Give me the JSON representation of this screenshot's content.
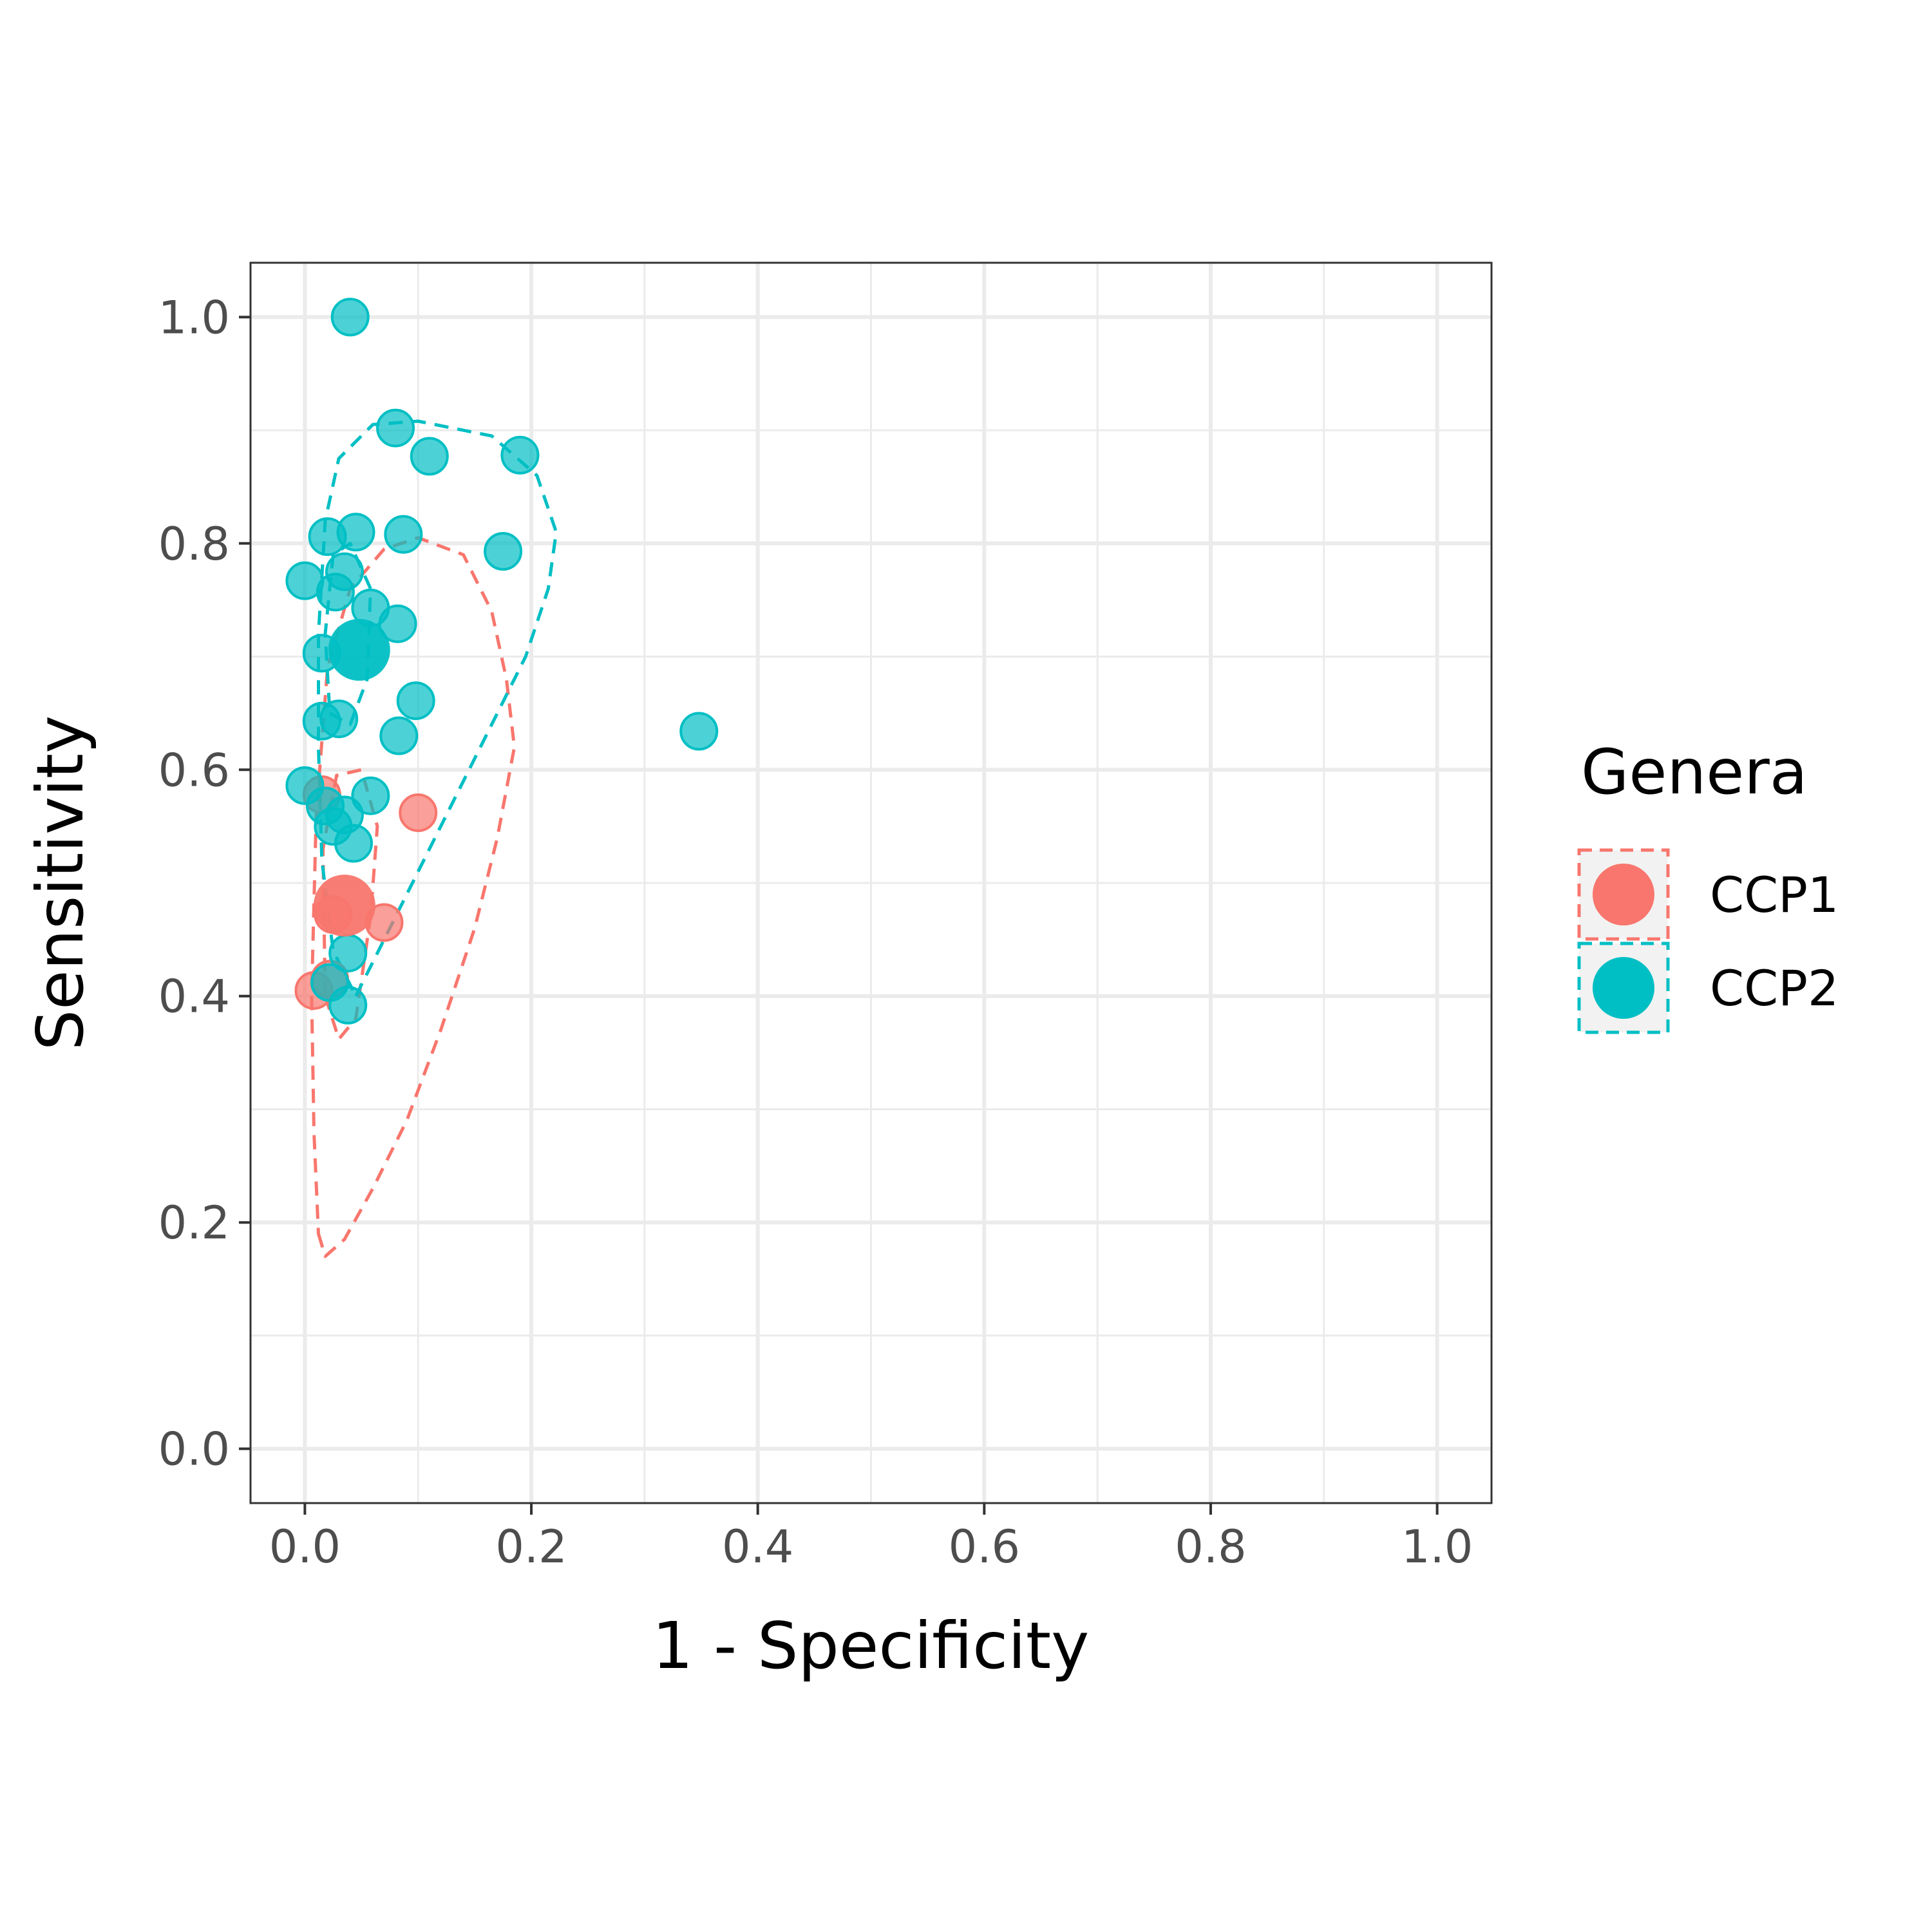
{
  "chart_data": {
    "type": "scatter",
    "xlabel": "1 - Specificity",
    "ylabel": "Sensitivity",
    "xlim": [
      -0.048,
      1.048
    ],
    "ylim": [
      -0.048,
      1.048
    ],
    "x_ticks": [
      "0.0",
      "0.2",
      "0.4",
      "0.6",
      "0.8",
      "1.0"
    ],
    "y_ticks": [
      "0.0",
      "0.2",
      "0.4",
      "0.6",
      "0.8",
      "1.0"
    ],
    "grid": true,
    "legend": {
      "title": "Genera",
      "position": "right"
    },
    "series": [
      {
        "name": "CCP1",
        "color": "#F8766D",
        "points": [
          {
            "x": 0.008,
            "y": 0.405
          },
          {
            "x": 0.022,
            "y": 0.415
          },
          {
            "x": 0.015,
            "y": 0.578
          },
          {
            "x": 0.025,
            "y": 0.472
          },
          {
            "x": 0.07,
            "y": 0.465
          },
          {
            "x": 0.1,
            "y": 0.562
          }
        ],
        "summary_point": {
          "x": 0.035,
          "y": 0.48
        },
        "confidence_region": [
          [
            0.012,
            0.19
          ],
          [
            0.018,
            0.17
          ],
          [
            0.035,
            0.185
          ],
          [
            0.06,
            0.23
          ],
          [
            0.09,
            0.29
          ],
          [
            0.12,
            0.37
          ],
          [
            0.15,
            0.46
          ],
          [
            0.17,
            0.54
          ],
          [
            0.185,
            0.62
          ],
          [
            0.178,
            0.68
          ],
          [
            0.165,
            0.74
          ],
          [
            0.14,
            0.79
          ],
          [
            0.1,
            0.805
          ],
          [
            0.07,
            0.795
          ],
          [
            0.04,
            0.76
          ],
          [
            0.02,
            0.69
          ],
          [
            0.01,
            0.56
          ],
          [
            0.006,
            0.4
          ],
          [
            0.008,
            0.28
          ],
          [
            0.012,
            0.19
          ]
        ],
        "prediction_region": [
          [
            0.018,
            0.4
          ],
          [
            0.03,
            0.362
          ],
          [
            0.045,
            0.38
          ],
          [
            0.058,
            0.47
          ],
          [
            0.064,
            0.55
          ],
          [
            0.05,
            0.6
          ],
          [
            0.028,
            0.595
          ],
          [
            0.016,
            0.53
          ],
          [
            0.018,
            0.4
          ]
        ]
      },
      {
        "name": "CCP2",
        "color": "#00BFC4",
        "points": [
          {
            "x": 0.04,
            "y": 1.0
          },
          {
            "x": 0.08,
            "y": 0.902
          },
          {
            "x": 0.11,
            "y": 0.877
          },
          {
            "x": 0.19,
            "y": 0.878
          },
          {
            "x": 0.02,
            "y": 0.806
          },
          {
            "x": 0.045,
            "y": 0.81
          },
          {
            "x": 0.087,
            "y": 0.808
          },
          {
            "x": 0.175,
            "y": 0.793
          },
          {
            "x": 0.0,
            "y": 0.767
          },
          {
            "x": 0.035,
            "y": 0.775
          },
          {
            "x": 0.027,
            "y": 0.757
          },
          {
            "x": 0.058,
            "y": 0.743
          },
          {
            "x": 0.082,
            "y": 0.729
          },
          {
            "x": 0.015,
            "y": 0.703
          },
          {
            "x": 0.098,
            "y": 0.661
          },
          {
            "x": 0.015,
            "y": 0.643
          },
          {
            "x": 0.03,
            "y": 0.645
          },
          {
            "x": 0.083,
            "y": 0.63
          },
          {
            "x": 0.348,
            "y": 0.634
          },
          {
            "x": 0.0,
            "y": 0.586
          },
          {
            "x": 0.018,
            "y": 0.568
          },
          {
            "x": 0.058,
            "y": 0.577
          },
          {
            "x": 0.035,
            "y": 0.56
          },
          {
            "x": 0.025,
            "y": 0.55
          },
          {
            "x": 0.043,
            "y": 0.535
          },
          {
            "x": 0.038,
            "y": 0.438
          },
          {
            "x": 0.022,
            "y": 0.412
          },
          {
            "x": 0.038,
            "y": 0.392
          }
        ],
        "summary_point": {
          "x": 0.048,
          "y": 0.706
        },
        "confidence_region": [
          [
            0.045,
            0.4
          ],
          [
            0.08,
            0.47
          ],
          [
            0.12,
            0.55
          ],
          [
            0.16,
            0.63
          ],
          [
            0.195,
            0.7
          ],
          [
            0.215,
            0.76
          ],
          [
            0.222,
            0.81
          ],
          [
            0.205,
            0.86
          ],
          [
            0.165,
            0.895
          ],
          [
            0.1,
            0.908
          ],
          [
            0.06,
            0.905
          ],
          [
            0.03,
            0.875
          ],
          [
            0.018,
            0.82
          ],
          [
            0.012,
            0.72
          ],
          [
            0.012,
            0.62
          ],
          [
            0.015,
            0.52
          ],
          [
            0.025,
            0.44
          ],
          [
            0.045,
            0.4
          ]
        ],
        "prediction_region": [
          [
            0.022,
            0.65
          ],
          [
            0.04,
            0.64
          ],
          [
            0.055,
            0.68
          ],
          [
            0.058,
            0.76
          ],
          [
            0.04,
            0.8
          ],
          [
            0.025,
            0.79
          ],
          [
            0.018,
            0.72
          ],
          [
            0.022,
            0.65
          ]
        ]
      }
    ]
  }
}
